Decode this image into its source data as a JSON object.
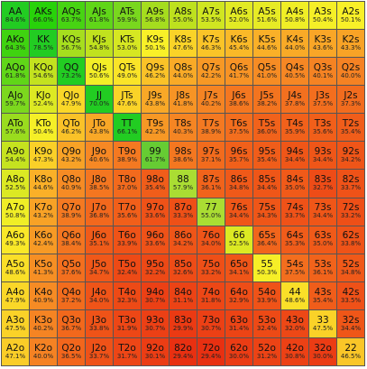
{
  "grid": {
    "rows": [
      [
        [
          "AA",
          "84.6%",
          "#ff0000"
        ],
        [
          "AKs",
          "66.0%",
          "#ff0000"
        ],
        [
          "AQs",
          "63.7%",
          "#ff0000"
        ],
        [
          "AJs",
          "61.8%",
          "#ff0000"
        ],
        [
          "ATs",
          "59.9%",
          "#ff0000"
        ],
        [
          "A9s",
          "56.8%",
          "#ff0000"
        ],
        [
          "A8s",
          "55.0%",
          "#ff0000"
        ],
        [
          "A7s",
          "53.5%",
          "#ff0000"
        ],
        [
          "A6s",
          "52.0%",
          "#ff0000"
        ],
        [
          "A5s",
          "51.6%",
          "#ff0000"
        ],
        [
          "A4s",
          "50.8%",
          "#ff0000"
        ],
        [
          "A3s",
          "50.4%",
          "#ff0000"
        ],
        [
          "A2s",
          "50.1%",
          "#ff0000"
        ]
      ],
      [
        [
          "AKo",
          "64.3%",
          "#ff0000"
        ],
        [
          "KK",
          "78.5%",
          "#ff0000"
        ],
        [
          "KQs",
          "56.7%",
          "#ff0000"
        ],
        [
          "KJs",
          "54.8%",
          "#ff0000"
        ],
        [
          "KTs",
          "53.0%",
          "#ff0000"
        ],
        [
          "K9s",
          "50.1%",
          "#ff0000"
        ],
        [
          "K8s",
          "47.6%",
          "#ff0000"
        ],
        [
          "K7s",
          "46.3%",
          "#ff0000"
        ],
        [
          "K6s",
          "45.4%",
          "#ff0000"
        ],
        [
          "K5s",
          "44.6%",
          "#ff0000"
        ],
        [
          "K4s",
          "44.0%",
          "#ff0000"
        ],
        [
          "K3s",
          "43.6%",
          "#ff0000"
        ],
        [
          "K2s",
          "43.3%",
          "#ff0000"
        ]
      ],
      [
        [
          "AQo",
          "61.8%",
          "#ff0000"
        ],
        [
          "KQo",
          "54.6%",
          "#ff0000"
        ],
        [
          "QQ",
          "73.2%",
          "#ff0000"
        ],
        [
          "QJs",
          "50.6%",
          "#ff0000"
        ],
        [
          "QTs",
          "49.0%",
          "#ff0000"
        ],
        [
          "Q9s",
          "46.2%",
          "#ff0000"
        ],
        [
          "Q8s",
          "44.0%",
          "#ff0000"
        ],
        [
          "Q7s",
          "42.2%",
          "#ff0000"
        ],
        [
          "Q6s",
          "41.7%",
          "#ff0000"
        ],
        [
          "Q5s",
          "41.0%",
          "#ff0000"
        ],
        [
          "Q4s",
          "40.5%",
          "#ff0000"
        ],
        [
          "Q3s",
          "40.1%",
          "#ff0000"
        ],
        [
          "Q2s",
          "40.0%",
          "#ff0000"
        ]
      ],
      [
        [
          "AJo",
          "59.7%",
          "#ff0000"
        ],
        [
          "KJo",
          "52.4%",
          "#ff0000"
        ],
        [
          "QJo",
          "47.9%",
          "#ff0000"
        ],
        [
          "JJ",
          "70.0%",
          "#ff0000"
        ],
        [
          "JTs",
          "47.6%",
          "#ff0000"
        ],
        [
          "J9s",
          "43.8%",
          "#ff0000"
        ],
        [
          "J8s",
          "41.8%",
          "#ff0000"
        ],
        [
          "J7s",
          "40.2%",
          "#ff0000"
        ],
        [
          "J6s",
          "38.6%",
          "#ff0000"
        ],
        [
          "J5s",
          "38.2%",
          "#ff0000"
        ],
        [
          "J4s",
          "37.8%",
          "#ff0000"
        ],
        [
          "J3s",
          "37.5%",
          "#ff0000"
        ],
        [
          "J2s",
          "37.3%",
          "#ff0000"
        ]
      ],
      [
        [
          "ATo",
          "57.6%",
          "#ff0000"
        ],
        [
          "KTo",
          "50.4%",
          "#ff0000"
        ],
        [
          "QTo",
          "46.2%",
          "#ff0000"
        ],
        [
          "JTo",
          "43.8%",
          "#ff0000"
        ],
        [
          "TT",
          "66.1%",
          "#ff0000"
        ],
        [
          "T9s",
          "42.2%",
          "#ff0000"
        ],
        [
          "T8s",
          "40.3%",
          "#ff0000"
        ],
        [
          "T7s",
          "38.9%",
          "#ff0000"
        ],
        [
          "T6s",
          "37.5%",
          "#ff0000"
        ],
        [
          "T5s",
          "36.0%",
          "#ff0000"
        ],
        [
          "T4s",
          "35.9%",
          "#ff0000"
        ],
        [
          "T3s",
          "35.6%",
          "#ff0000"
        ],
        [
          "T2s",
          "35.4%",
          "#ff0000"
        ]
      ],
      [
        [
          "A9o",
          "54.4%",
          "#ff0000"
        ],
        [
          "K9o",
          "47.3%",
          "#ff0000"
        ],
        [
          "Q9o",
          "43.2%",
          "#ff0000"
        ],
        [
          "J9o",
          "40.6%",
          "#ff0000"
        ],
        [
          "T9o",
          "38.9%",
          "#ff0000"
        ],
        [
          "99",
          "61.7%",
          "#ff0000"
        ],
        [
          "98s",
          "38.6%",
          "#ff0000"
        ],
        [
          "97s",
          "37.1%",
          "#ff0000"
        ],
        [
          "96s",
          "35.7%",
          "#ff0000"
        ],
        [
          "95s",
          "35.4%",
          "#ff0000"
        ],
        [
          "94s",
          "34.4%",
          "#ff0000"
        ],
        [
          "93s",
          "34.4%",
          "#ff0000"
        ],
        [
          "92s",
          "34.2%",
          "#ff0000"
        ]
      ],
      [
        [
          "A8o",
          "52.5%",
          "#ff0000"
        ],
        [
          "K8o",
          "44.6%",
          "#ff0000"
        ],
        [
          "Q8o",
          "40.9%",
          "#ff0000"
        ],
        [
          "J8o",
          "38.5%",
          "#ff0000"
        ],
        [
          "T8o",
          "37.0%",
          "#ff0000"
        ],
        [
          "98o",
          "35.4%",
          "#ff0000"
        ],
        [
          "88",
          "57.9%",
          "#ff0000"
        ],
        [
          "87s",
          "36.1%",
          "#ff0000"
        ],
        [
          "86s",
          "34.8%",
          "#ff0000"
        ],
        [
          "85s",
          "34.4%",
          "#ff0000"
        ],
        [
          "84s",
          "35.0%",
          "#ff0000"
        ],
        [
          "83s",
          "32.7%",
          "#ff0000"
        ],
        [
          "82s",
          "33.7%",
          "#ff0000"
        ]
      ],
      [
        [
          "A7o",
          "50.8%",
          "#ff0000"
        ],
        [
          "K7o",
          "43.2%",
          "#ff0000"
        ],
        [
          "Q7o",
          "38.9%",
          "#ff0000"
        ],
        [
          "J7o",
          "36.8%",
          "#ff0000"
        ],
        [
          "T7o",
          "35.6%",
          "#ff0000"
        ],
        [
          "97o",
          "33.6%",
          "#ff0000"
        ],
        [
          "87o",
          "33.3%",
          "#ff0000"
        ],
        [
          "77",
          "55.0%",
          "#ff0000"
        ],
        [
          "76s",
          "34.4%",
          "#ff0000"
        ],
        [
          "75s",
          "34.3%",
          "#ff0000"
        ],
        [
          "74s",
          "33.7%",
          "#ff0000"
        ],
        [
          "73s",
          "34.4%",
          "#ff0000"
        ],
        [
          "72s",
          "33.2%",
          "#ff0000"
        ]
      ],
      [
        [
          "A6o",
          "49.3%",
          "#ff0000"
        ],
        [
          "K6o",
          "42.4%",
          "#ff0000"
        ],
        [
          "Q6o",
          "38.4%",
          "#ff0000"
        ],
        [
          "J6o",
          "35.1%",
          "#ff0000"
        ],
        [
          "T6o",
          "33.9%",
          "#ff0000"
        ],
        [
          "96o",
          "33.6%",
          "#ff0000"
        ],
        [
          "86o",
          "34.2%",
          "#ff0000"
        ],
        [
          "76o",
          "34.0%",
          "#ff0000"
        ],
        [
          "66",
          "52.5%",
          "#ff0000"
        ],
        [
          "65s",
          "36.4%",
          "#ff0000"
        ],
        [
          "64s",
          "35.3%",
          "#ff0000"
        ],
        [
          "63s",
          "35.0%",
          "#ff0000"
        ],
        [
          "62s",
          "33.8%",
          "#ff0000"
        ]
      ],
      [
        [
          "A5o",
          "48.6%",
          "#ff0000"
        ],
        [
          "K5o",
          "41.3%",
          "#ff0000"
        ],
        [
          "Q5o",
          "37.6%",
          "#ff0000"
        ],
        [
          "J5o",
          "34.7%",
          "#ff0000"
        ],
        [
          "T5o",
          "32.4%",
          "#ff0000"
        ],
        [
          "95o",
          "32.2%",
          "#ff0000"
        ],
        [
          "85o",
          "32.6%",
          "#ff0000"
        ],
        [
          "75o",
          "33.2%",
          "#ff0000"
        ],
        [
          "65o",
          "34.1%",
          "#ff0000"
        ],
        [
          "55",
          "50.3%",
          "#ff0000"
        ],
        [
          "54s",
          "37.5%",
          "#ff0000"
        ],
        [
          "53s",
          "36.1%",
          "#ff0000"
        ],
        [
          "52s",
          "34.8%",
          "#ff0000"
        ]
      ],
      [
        [
          "A4o",
          "47.9%",
          "#ff0000"
        ],
        [
          "K4o",
          "40.9%",
          "#ff0000"
        ],
        [
          "Q4o",
          "37.2%",
          "#ff0000"
        ],
        [
          "J4o",
          "34.0%",
          "#ff0000"
        ],
        [
          "T4o",
          "32.3%",
          "#ff0000"
        ],
        [
          "94o",
          "30.7%",
          "#ff0000"
        ],
        [
          "84o",
          "31.1%",
          "#ff0000"
        ],
        [
          "74o",
          "31.8%",
          "#ff0000"
        ],
        [
          "64o",
          "32.9%",
          "#ff0000"
        ],
        [
          "54o",
          "33.9%",
          "#ff0000"
        ],
        [
          "44",
          "48.6%",
          "#ff0000"
        ],
        [
          "43s",
          "35.4%",
          "#ff0000"
        ],
        [
          "42s",
          "33.5%",
          "#ff0000"
        ]
      ],
      [
        [
          "A3o",
          "47.5%",
          "#ff0000"
        ],
        [
          "K3o",
          "40.2%",
          "#ff0000"
        ],
        [
          "Q3o",
          "36.7%",
          "#ff0000"
        ],
        [
          "J3o",
          "33.8%",
          "#ff0000"
        ],
        [
          "T3o",
          "31.9%",
          "#ff0000"
        ],
        [
          "93o",
          "30.7%",
          "#ff0000"
        ],
        [
          "83o",
          "29.9%",
          "#ff0000"
        ],
        [
          "73o",
          "30.7%",
          "#ff0000"
        ],
        [
          "63o",
          "31.4%",
          "#ff0000"
        ],
        [
          "53o",
          "32.4%",
          "#ff0000"
        ],
        [
          "43o",
          "32.0%",
          "#ff0000"
        ],
        [
          "33",
          "47.5%",
          "#ff0000"
        ],
        [
          "32s",
          "34.4%",
          "#ff0000"
        ]
      ],
      [
        [
          "A2o",
          "47.1%",
          "#ff0000"
        ],
        [
          "K2o",
          "40.0%",
          "#ff0000"
        ],
        [
          "Q2o",
          "36.5%",
          "#ff0000"
        ],
        [
          "J2o",
          "33.7%",
          "#ff0000"
        ],
        [
          "T2o",
          "31.7%",
          "#ff0000"
        ],
        [
          "92o",
          "30.1%",
          "#ff0000"
        ],
        [
          "82o",
          "29.4%",
          "#ff0000"
        ],
        [
          "72o",
          "29.4%",
          "#ff0000"
        ],
        [
          "62o",
          "30.0%",
          "#ff0000"
        ],
        [
          "52o",
          "31.2%",
          "#ff0000"
        ],
        [
          "42o",
          "30.8%",
          "#ff0000"
        ],
        [
          "32o",
          "30.0%",
          "#ff0000"
        ],
        [
          "22",
          "46.5%",
          "#ff0000"
        ]
      ]
    ]
  }
}
